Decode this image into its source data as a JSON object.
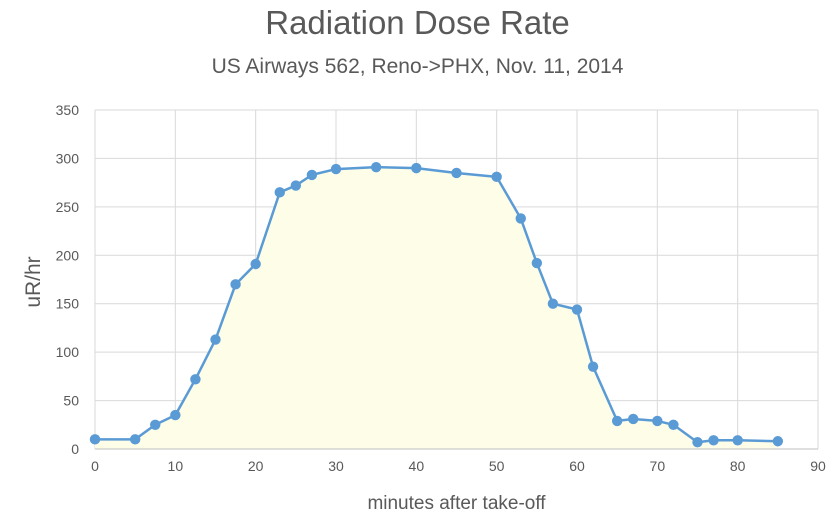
{
  "chart_data": {
    "type": "area",
    "title": "Radiation Dose Rate",
    "subtitle": "US Airways 562, Reno->PHX, Nov. 11, 2014",
    "xlabel": "minutes after take-off",
    "ylabel": "uR/hr",
    "xlim": [
      0,
      90
    ],
    "ylim": [
      0,
      350
    ],
    "xticks": [
      0,
      10,
      20,
      30,
      40,
      50,
      60,
      70,
      80,
      90
    ],
    "yticks": [
      0,
      50,
      100,
      150,
      200,
      250,
      300,
      350
    ],
    "grid": true,
    "legend": "none",
    "line_color": "#5b9bd5",
    "fill_color": "#fdfde8",
    "series": [
      {
        "x": [
          0,
          5,
          7.5,
          10,
          12.5,
          15,
          17.5,
          20,
          23,
          25,
          27,
          30,
          35,
          40,
          45,
          50,
          53,
          55,
          57,
          60,
          62,
          65,
          67,
          70,
          72,
          75,
          77,
          80,
          85
        ],
        "y": [
          10,
          10,
          25,
          35,
          72,
          113,
          170,
          191,
          265,
          272,
          283,
          289,
          291,
          290,
          285,
          281,
          238,
          192,
          150,
          144,
          85,
          29,
          31,
          29,
          25,
          7,
          9,
          9,
          8
        ]
      }
    ]
  }
}
